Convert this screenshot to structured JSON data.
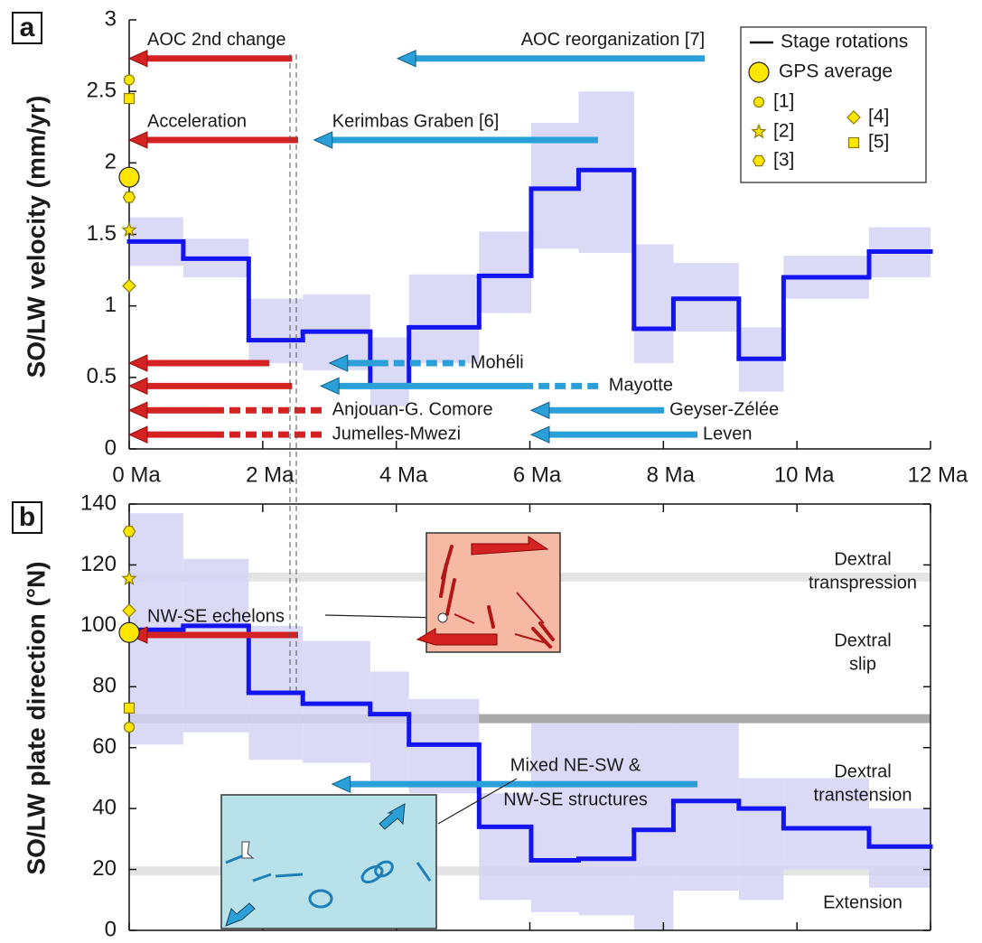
{
  "chart_data": [
    {
      "type": "step",
      "panel": "a",
      "ylabel": "SO/LW velocity (mm/yr)",
      "xlim": [
        0,
        12
      ],
      "ylim": [
        0,
        3
      ],
      "xticks": [
        {
          "value": 0,
          "label": "0 Ma"
        },
        {
          "value": 2,
          "label": "2 Ma"
        },
        {
          "value": 4,
          "label": "4 Ma"
        },
        {
          "value": 6,
          "label": "6 Ma"
        },
        {
          "value": 8,
          "label": "8 Ma"
        },
        {
          "value": 10,
          "label": "10 Ma"
        },
        {
          "value": 12,
          "label": "12 Ma"
        }
      ],
      "yticks": [
        0,
        0.5,
        1,
        1.5,
        2,
        2.5,
        3
      ],
      "edges": [
        0,
        0.81,
        1.79,
        2.6,
        3.61,
        4.19,
        5.24,
        6.02,
        6.73,
        7.56,
        8.15,
        9.13,
        9.8,
        11.08,
        12
      ],
      "series": [
        {
          "name": "Stage rotations",
          "color": "#1414f0",
          "values": [
            1.45,
            1.33,
            0.76,
            0.82,
            0.44,
            0.85,
            1.21,
            1.82,
            1.95,
            0.84,
            1.05,
            0.63,
            1.2,
            1.38
          ],
          "lower": [
            1.28,
            1.2,
            0.6,
            0.55,
            0.3,
            0.6,
            0.95,
            1.4,
            1.37,
            0.6,
            0.82,
            0.4,
            1.05,
            1.2
          ],
          "upper": [
            1.62,
            1.47,
            1.05,
            1.08,
            0.78,
            1.22,
            1.52,
            2.28,
            2.5,
            1.43,
            1.3,
            0.85,
            1.35,
            1.55
          ]
        }
      ],
      "band_color": "#d4d4f6",
      "markers": [
        {
          "name": "[1]",
          "symbol": "circle",
          "value": 2.58
        },
        {
          "name": "[5]",
          "symbol": "square",
          "value": 2.45
        },
        {
          "name": "GPS average",
          "symbol": "gps",
          "value": 1.9
        },
        {
          "name": "[3]",
          "symbol": "hexagon",
          "value": 1.76
        },
        {
          "name": "[2]",
          "symbol": "star",
          "value": 1.53
        },
        {
          "name": "[4]",
          "symbol": "diamond",
          "value": 1.14
        }
      ],
      "marker_color": "#ffe600",
      "arrows": [
        {
          "label": "AOC 2nd change",
          "color": "#d42222",
          "y": 2.73,
          "head": 0,
          "tail": 2.44
        },
        {
          "label": "Acceleration",
          "color": "#d42222",
          "y": 2.16,
          "head": 0,
          "tail": 2.53
        },
        {
          "color": "#d42222",
          "y": 0.6,
          "head": 0,
          "tail": 2.1
        },
        {
          "color": "#d42222",
          "y": 0.44,
          "head": 0,
          "tail": 2.44
        },
        {
          "label": "Anjouan-G. Comore",
          "color": "#d42222",
          "y": 0.27,
          "head": 0,
          "dash_from": 1.42,
          "tail": 2.96
        },
        {
          "label": "Jumelles-Mwezi",
          "color": "#d42222",
          "y": 0.1,
          "head": 0,
          "dash_from": 1.42,
          "tail": 2.96
        },
        {
          "label": "AOC reorganization [7]",
          "color": "#2a9fd8",
          "y": 2.73,
          "head": 4.02,
          "tail": 8.62
        },
        {
          "label": "Kerimbas Graben [6]",
          "color": "#2a9fd8",
          "y": 2.16,
          "head": 2.77,
          "tail": 7.02
        },
        {
          "label": "Mohéli",
          "color": "#2a9fd8",
          "y": 0.6,
          "head": 3.0,
          "dash_from": 3.88,
          "tail": 5.03
        },
        {
          "label": "Mayotte",
          "color": "#2a9fd8",
          "y": 0.44,
          "head": 2.87,
          "dash_from": 6.05,
          "tail": 7.1
        },
        {
          "label": "Geyser-Zélée",
          "color": "#2a9fd8",
          "y": 0.27,
          "head": 6.02,
          "tail": 8.01
        },
        {
          "label": "Leven",
          "color": "#2a9fd8",
          "y": 0.1,
          "head": 6.02,
          "tail": 8.51
        }
      ]
    },
    {
      "type": "step",
      "panel": "b",
      "ylabel": "SO/LW plate direction (°N)",
      "xlim": [
        0,
        12
      ],
      "ylim": [
        0,
        140
      ],
      "xticks": [
        0,
        2,
        4,
        6,
        8,
        10,
        12
      ],
      "yticks": [
        0,
        20,
        40,
        60,
        80,
        100,
        120,
        140
      ],
      "edges": [
        0,
        0.81,
        1.79,
        2.6,
        3.61,
        4.19,
        5.24,
        6.02,
        6.73,
        7.56,
        8.15,
        9.13,
        9.8,
        11.08,
        12
      ],
      "series": [
        {
          "color": "#1414f0",
          "values": [
            98.7,
            100,
            78,
            74.4,
            71,
            61,
            34,
            23,
            23.5,
            33,
            42.5,
            40,
            33.5,
            27.5
          ],
          "lower": [
            61,
            65,
            56,
            55,
            48,
            45,
            10,
            6,
            5,
            0,
            13,
            10,
            20,
            14
          ],
          "upper": [
            137,
            122,
            100,
            95,
            85,
            76,
            45,
            68,
            68,
            68,
            68,
            50,
            50,
            40
          ]
        }
      ],
      "band_color": "#d4d4f6",
      "markers": [
        {
          "symbol": "hexagon",
          "value": 131
        },
        {
          "symbol": "star",
          "value": 115.5
        },
        {
          "symbol": "diamond",
          "value": 105
        },
        {
          "symbol": "gps",
          "value": 97.8
        },
        {
          "symbol": "square",
          "value": 73
        },
        {
          "symbol": "circle",
          "value": 66.7
        }
      ],
      "marker_color": "#ffe600",
      "bands": [
        {
          "value": 116,
          "color": "#e4e4e4"
        },
        {
          "value": 69.5,
          "color": "#a9a9a9"
        },
        {
          "value": 19.5,
          "color": "#e4e4e4"
        }
      ],
      "regions": [
        [
          "Dextral",
          "transpression"
        ],
        [
          "Dextral",
          "slip"
        ],
        [
          "Dextral",
          "transtension"
        ],
        [
          "Extension"
        ]
      ],
      "arrows": [
        {
          "label": "NW-SE echelons",
          "color": "#d42222",
          "y": 97,
          "head": 0,
          "tail": 2.53
        },
        {
          "label": [
            "Mixed NE-SW &",
            "NW-SE structures"
          ],
          "color": "#2a9fd8",
          "y": 48,
          "head": 3.04,
          "tail": 8.51
        }
      ]
    }
  ]
}
